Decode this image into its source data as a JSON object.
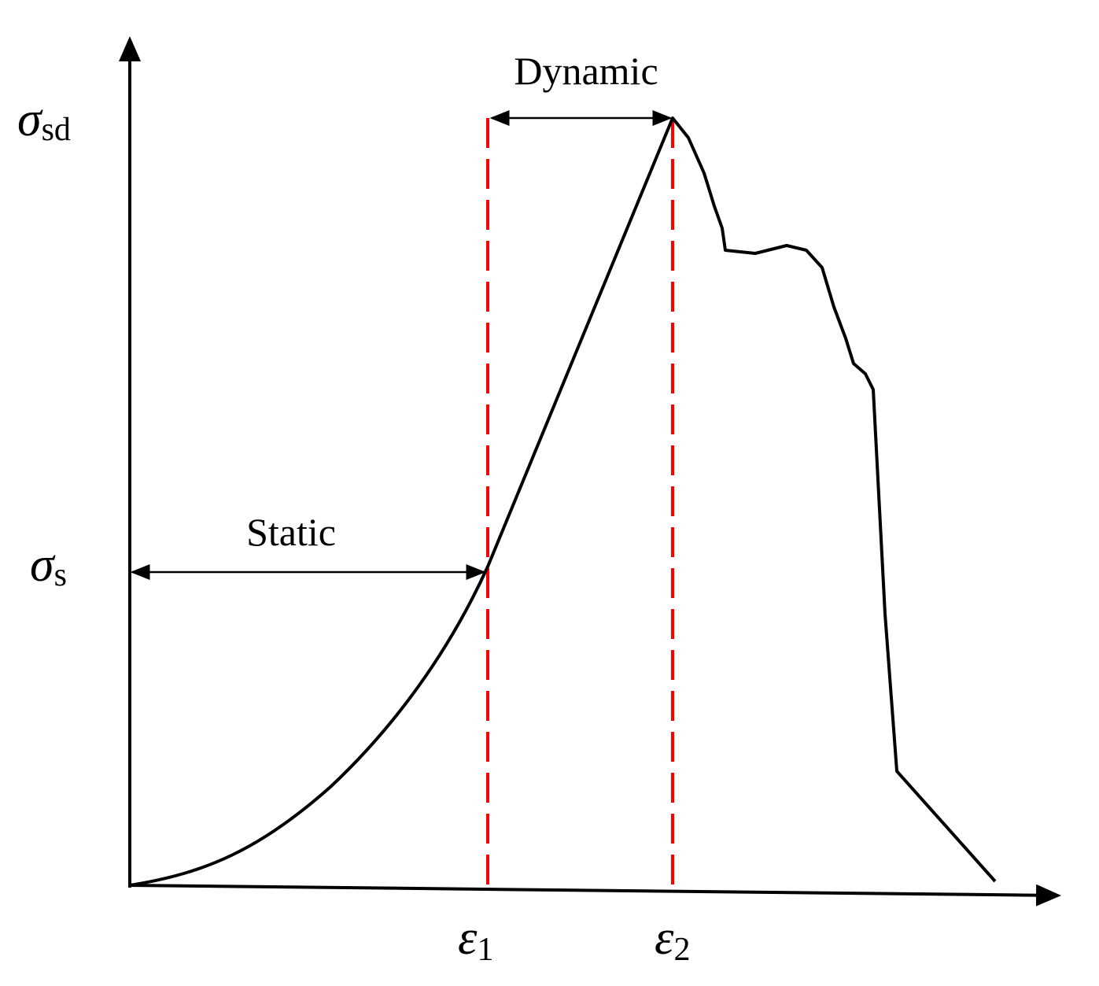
{
  "axes": {
    "y_labels": [
      {
        "symbol": "σ",
        "subscript": "sd"
      },
      {
        "symbol": "σ",
        "subscript": "s"
      }
    ],
    "x_labels": [
      {
        "symbol": "ε",
        "subscript": "1"
      },
      {
        "symbol": "ε",
        "subscript": "2"
      }
    ]
  },
  "annotations": {
    "dynamic": "Dynamic",
    "static": "Static"
  }
}
